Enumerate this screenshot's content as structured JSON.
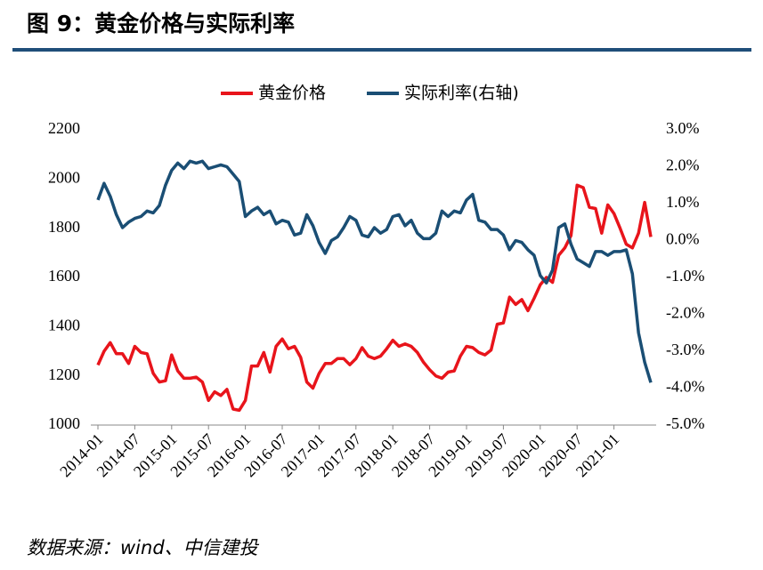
{
  "chart_data": {
    "type": "line",
    "title": "图 9：黄金价格与实际利率",
    "source": "数据来源：wind、中信建投",
    "categories": [
      "2014-01",
      null,
      null,
      null,
      null,
      null,
      "2014-07",
      null,
      null,
      null,
      null,
      null,
      "2015-01",
      null,
      null,
      null,
      null,
      null,
      "2015-07",
      null,
      null,
      null,
      null,
      null,
      "2016-01",
      null,
      null,
      null,
      null,
      null,
      "2016-07",
      null,
      null,
      null,
      null,
      null,
      "2017-01",
      null,
      null,
      null,
      null,
      null,
      "2017-07",
      null,
      null,
      null,
      null,
      null,
      "2018-01",
      null,
      null,
      null,
      null,
      null,
      "2018-07",
      null,
      null,
      null,
      null,
      null,
      "2019-01",
      null,
      null,
      null,
      null,
      null,
      "2019-07",
      null,
      null,
      null,
      null,
      null,
      "2020-01",
      null,
      null,
      null,
      null,
      null,
      "2020-07",
      null,
      null,
      null,
      null,
      null,
      "2021-01",
      null,
      null,
      null,
      null,
      null,
      null
    ],
    "series": [
      {
        "name": "黄金价格",
        "color": "#e8141b",
        "values": [
          1244,
          1300,
          1335,
          1290,
          1290,
          1250,
          1320,
          1295,
          1290,
          1210,
          1175,
          1180,
          1285,
          1220,
          1190,
          1190,
          1195,
          1175,
          1100,
          1135,
          1120,
          1145,
          1065,
          1060,
          1100,
          1240,
          1240,
          1295,
          1215,
          1320,
          1350,
          1310,
          1320,
          1275,
          1175,
          1150,
          1210,
          1250,
          1250,
          1270,
          1270,
          1245,
          1270,
          1315,
          1280,
          1270,
          1280,
          1310,
          1345,
          1320,
          1330,
          1320,
          1295,
          1255,
          1225,
          1200,
          1190,
          1215,
          1220,
          1280,
          1320,
          1315,
          1295,
          1285,
          1305,
          1410,
          1415,
          1520,
          1490,
          1510,
          1465,
          1515,
          1570,
          1600,
          1580,
          1690,
          1720,
          1770,
          1975,
          1965,
          1885,
          1880,
          1780,
          1895,
          1860,
          1800,
          1735,
          1720,
          1780,
          1905,
          1765
        ]
      },
      {
        "name": "实际利率(右轴)",
        "color": "#1a4e74",
        "axis": "y2",
        "values": [
          1.1,
          1.55,
          1.2,
          0.7,
          0.35,
          0.5,
          0.6,
          0.65,
          0.8,
          0.75,
          0.95,
          1.5,
          1.9,
          2.1,
          1.95,
          2.15,
          2.1,
          2.15,
          1.95,
          2.0,
          2.05,
          2.0,
          1.8,
          1.6,
          0.65,
          0.8,
          0.9,
          0.7,
          0.8,
          0.45,
          0.55,
          0.5,
          0.15,
          0.2,
          0.7,
          0.4,
          -0.05,
          -0.35,
          0.0,
          0.1,
          0.35,
          0.65,
          0.55,
          0.15,
          0.1,
          0.35,
          0.2,
          0.3,
          0.65,
          0.7,
          0.4,
          0.55,
          0.2,
          0.05,
          0.05,
          0.2,
          0.8,
          0.65,
          0.8,
          0.75,
          1.1,
          1.25,
          0.55,
          0.5,
          0.3,
          0.3,
          0.15,
          -0.25,
          0.0,
          -0.05,
          -0.25,
          -0.4,
          -0.95,
          -1.15,
          -0.8,
          0.35,
          0.45,
          -0.1,
          -0.5,
          -0.6,
          -0.7,
          -0.3,
          -0.3,
          -0.4,
          -0.3,
          -0.3,
          -0.25,
          -0.9,
          -2.5,
          -3.3,
          -3.85
        ]
      }
    ],
    "ylim": [
      1000,
      2200
    ],
    "yticks": [
      1000,
      1200,
      1400,
      1600,
      1800,
      2000,
      2200
    ],
    "y2lim": [
      -5,
      3
    ],
    "y2ticks": [
      {
        "value": -5,
        "label": "-5.0%"
      },
      {
        "value": -4,
        "label": "-4.0%"
      },
      {
        "value": -3,
        "label": "-3.0%"
      },
      {
        "value": -2,
        "label": "-2.0%"
      },
      {
        "value": -1,
        "label": "-1.0%"
      },
      {
        "value": 0,
        "label": "0.0%"
      },
      {
        "value": 1,
        "label": "1.0%"
      },
      {
        "value": 2,
        "label": "2.0%"
      },
      {
        "value": 3,
        "label": "3.0%"
      }
    ],
    "legend": "top"
  }
}
